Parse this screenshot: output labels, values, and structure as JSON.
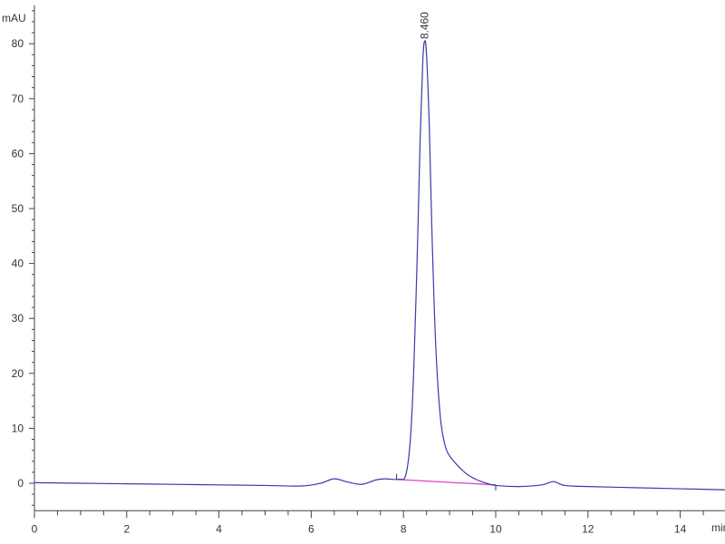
{
  "chart_data": {
    "type": "line",
    "title": "",
    "xlabel": "min",
    "ylabel": "mAU",
    "xlim": [
      0,
      15
    ],
    "ylim": [
      -5,
      87
    ],
    "x_ticks": [
      0,
      2,
      4,
      6,
      8,
      10,
      12,
      14
    ],
    "y_ticks": [
      0,
      10,
      20,
      30,
      40,
      50,
      60,
      70,
      80
    ],
    "grid": false,
    "colors": {
      "signal": "#3a3aa8",
      "baseline": "#e040c0"
    },
    "series": [
      {
        "x": [
          0,
          1,
          2,
          3,
          4,
          5,
          5.8,
          6.2,
          6.5,
          6.8,
          7.1,
          7.4,
          7.6,
          7.9,
          8.05,
          8.15,
          8.22,
          8.3,
          8.36,
          8.42,
          8.46,
          8.5,
          8.56,
          8.62,
          8.7,
          8.8,
          8.9,
          9.0,
          9.2,
          9.4,
          9.6,
          9.8,
          10,
          10.5,
          11,
          11.25,
          11.5,
          12,
          13,
          14,
          15
        ],
        "y": [
          0.1,
          0,
          -0.1,
          -0.2,
          -0.3,
          -0.4,
          -0.5,
          0,
          0.8,
          0.2,
          -0.2,
          0.6,
          0.8,
          0.7,
          1.5,
          8,
          20,
          42,
          62,
          77,
          80.5,
          78,
          65,
          45,
          25,
          12,
          7,
          5,
          3,
          1.5,
          0.6,
          0,
          -0.4,
          -0.6,
          -0.3,
          0.3,
          -0.4,
          -0.6,
          -0.8,
          -1.0,
          -1.2
        ]
      }
    ],
    "integration_baseline": {
      "x": [
        7.85,
        10.0
      ],
      "y": [
        0.7,
        -0.3
      ]
    },
    "annotations": [
      {
        "text": "8.460",
        "x": 8.46,
        "y": 80.5
      }
    ]
  }
}
